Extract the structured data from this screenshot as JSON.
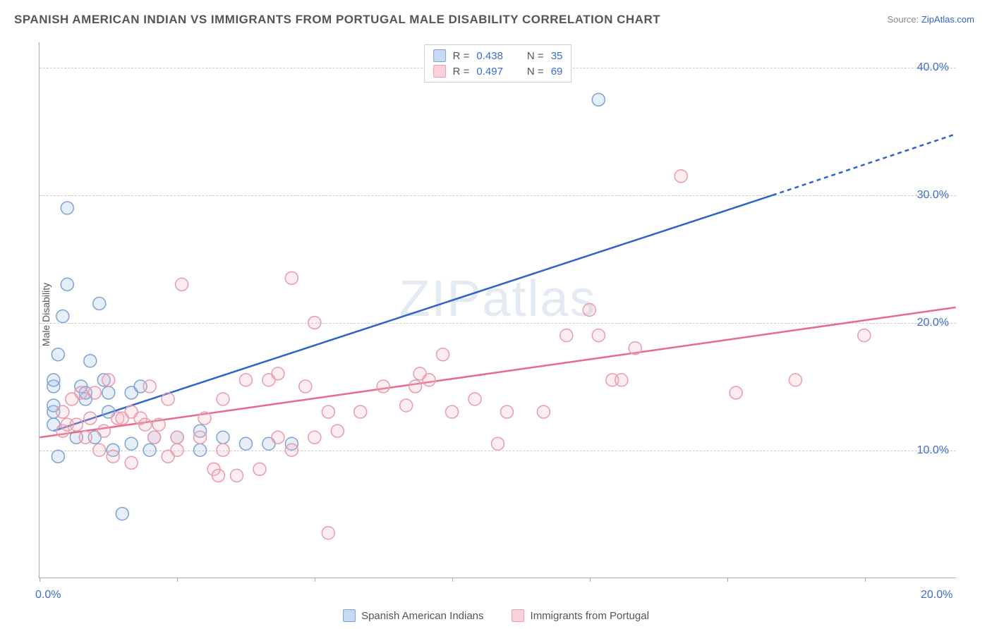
{
  "title": "SPANISH AMERICAN INDIAN VS IMMIGRANTS FROM PORTUGAL MALE DISABILITY CORRELATION CHART",
  "source_prefix": "Source: ",
  "source_link": "ZipAtlas.com",
  "ylabel": "Male Disability",
  "watermark": "ZIPatlas",
  "chart": {
    "type": "scatter",
    "xlim": [
      0,
      20
    ],
    "ylim": [
      0,
      42
    ],
    "x_ticks": [
      0,
      3,
      6,
      9,
      12,
      15,
      18
    ],
    "x_tick_labels_shown": {
      "0": "0.0%",
      "20": "20.0%"
    },
    "y_gridlines": [
      10,
      20,
      30,
      40
    ],
    "y_tick_labels": {
      "10": "10.0%",
      "20": "20.0%",
      "30": "30.0%",
      "40": "40.0%"
    },
    "background_color": "#ffffff",
    "grid_color": "#cccccc",
    "axis_color": "#aaaaaa",
    "marker_radius": 9,
    "marker_stroke_width": 1.5,
    "marker_fill_opacity": 0.25,
    "line_width": 2.5,
    "series": [
      {
        "name": "Spanish American Indians",
        "color": "#9bbce3",
        "stroke": "#7ba3d4",
        "line_color": "#2f63c8",
        "R": "0.438",
        "N": "35",
        "trend": {
          "x1": 0.3,
          "y1": 11.5,
          "x2": 16.0,
          "y2": 30.0,
          "x2_dash": 20.0,
          "y2_dash": 34.8
        },
        "points": [
          [
            0.3,
            12.0
          ],
          [
            0.3,
            13.0
          ],
          [
            0.3,
            13.5
          ],
          [
            0.3,
            15.0
          ],
          [
            0.3,
            15.5
          ],
          [
            0.4,
            17.5
          ],
          [
            0.4,
            9.5
          ],
          [
            0.5,
            20.5
          ],
          [
            0.6,
            23.0
          ],
          [
            0.6,
            29.0
          ],
          [
            0.8,
            11.0
          ],
          [
            0.9,
            15.0
          ],
          [
            1.0,
            14.0
          ],
          [
            1.0,
            14.5
          ],
          [
            1.1,
            17.0
          ],
          [
            1.2,
            11.0
          ],
          [
            1.3,
            21.5
          ],
          [
            1.4,
            15.5
          ],
          [
            1.5,
            13.0
          ],
          [
            1.5,
            14.5
          ],
          [
            1.6,
            10.0
          ],
          [
            1.8,
            5.0
          ],
          [
            2.0,
            10.5
          ],
          [
            2.0,
            14.5
          ],
          [
            2.2,
            15.0
          ],
          [
            2.4,
            10.0
          ],
          [
            2.5,
            11.0
          ],
          [
            3.0,
            11.0
          ],
          [
            3.5,
            11.5
          ],
          [
            3.5,
            10.0
          ],
          [
            4.0,
            11.0
          ],
          [
            4.5,
            10.5
          ],
          [
            5.0,
            10.5
          ],
          [
            5.5,
            10.5
          ],
          [
            12.2,
            37.5
          ]
        ]
      },
      {
        "name": "Immigrants from Portugal",
        "color": "#f5b8c5",
        "stroke": "#e99bad",
        "line_color": "#e86b8a",
        "R": "0.497",
        "N": "69",
        "trend": {
          "x1": 0.0,
          "y1": 11.0,
          "x2": 20.0,
          "y2": 21.2
        },
        "points": [
          [
            0.5,
            11.5
          ],
          [
            0.5,
            13.0
          ],
          [
            0.6,
            12.0
          ],
          [
            0.7,
            14.0
          ],
          [
            0.8,
            12.0
          ],
          [
            0.9,
            14.5
          ],
          [
            1.0,
            11.0
          ],
          [
            1.1,
            12.5
          ],
          [
            1.2,
            14.5
          ],
          [
            1.3,
            10.0
          ],
          [
            1.4,
            11.5
          ],
          [
            1.5,
            15.5
          ],
          [
            1.6,
            9.5
          ],
          [
            1.7,
            12.5
          ],
          [
            1.8,
            12.5
          ],
          [
            2.0,
            13.0
          ],
          [
            2.0,
            9.0
          ],
          [
            2.2,
            12.5
          ],
          [
            2.3,
            12.0
          ],
          [
            2.4,
            15.0
          ],
          [
            2.5,
            11.0
          ],
          [
            2.6,
            12.0
          ],
          [
            2.8,
            9.5
          ],
          [
            2.8,
            14.0
          ],
          [
            3.0,
            10.0
          ],
          [
            3.0,
            11.0
          ],
          [
            3.1,
            23.0
          ],
          [
            3.5,
            11.0
          ],
          [
            3.6,
            12.5
          ],
          [
            3.8,
            8.5
          ],
          [
            3.9,
            8.0
          ],
          [
            4.0,
            10.0
          ],
          [
            4.0,
            14.0
          ],
          [
            4.3,
            8.0
          ],
          [
            4.5,
            15.5
          ],
          [
            4.8,
            8.5
          ],
          [
            5.0,
            15.5
          ],
          [
            5.2,
            11.0
          ],
          [
            5.2,
            16.0
          ],
          [
            5.5,
            10.0
          ],
          [
            5.5,
            23.5
          ],
          [
            5.8,
            15.0
          ],
          [
            6.0,
            11.0
          ],
          [
            6.0,
            20.0
          ],
          [
            6.3,
            13.0
          ],
          [
            6.3,
            3.5
          ],
          [
            6.5,
            11.5
          ],
          [
            7.0,
            13.0
          ],
          [
            7.5,
            15.0
          ],
          [
            8.0,
            13.5
          ],
          [
            8.2,
            15.0
          ],
          [
            8.3,
            16.0
          ],
          [
            8.5,
            15.5
          ],
          [
            8.8,
            17.5
          ],
          [
            9.0,
            13.0
          ],
          [
            9.5,
            14.0
          ],
          [
            10.0,
            10.5
          ],
          [
            10.2,
            13.0
          ],
          [
            11.0,
            13.0
          ],
          [
            11.5,
            19.0
          ],
          [
            12.0,
            21.0
          ],
          [
            12.2,
            19.0
          ],
          [
            12.5,
            15.5
          ],
          [
            12.7,
            15.5
          ],
          [
            13.0,
            18.0
          ],
          [
            14.0,
            31.5
          ],
          [
            15.2,
            14.5
          ],
          [
            16.5,
            15.5
          ],
          [
            18.0,
            19.0
          ]
        ]
      }
    ]
  },
  "legend_top": {
    "rows": [
      {
        "swatch_fill": "#c6dbf2",
        "swatch_border": "#7ba3d4",
        "R_label": "R =",
        "R": "0.438",
        "N_label": "N =",
        "N": "35"
      },
      {
        "swatch_fill": "#f9d3dc",
        "swatch_border": "#e99bad",
        "R_label": "R =",
        "R": "0.497",
        "N_label": "N =",
        "N": "69"
      }
    ]
  },
  "legend_bottom": {
    "items": [
      {
        "swatch_fill": "#c6dbf2",
        "swatch_border": "#7ba3d4",
        "label": "Spanish American Indians"
      },
      {
        "swatch_fill": "#f9d3dc",
        "swatch_border": "#e99bad",
        "label": "Immigrants from Portugal"
      }
    ]
  }
}
